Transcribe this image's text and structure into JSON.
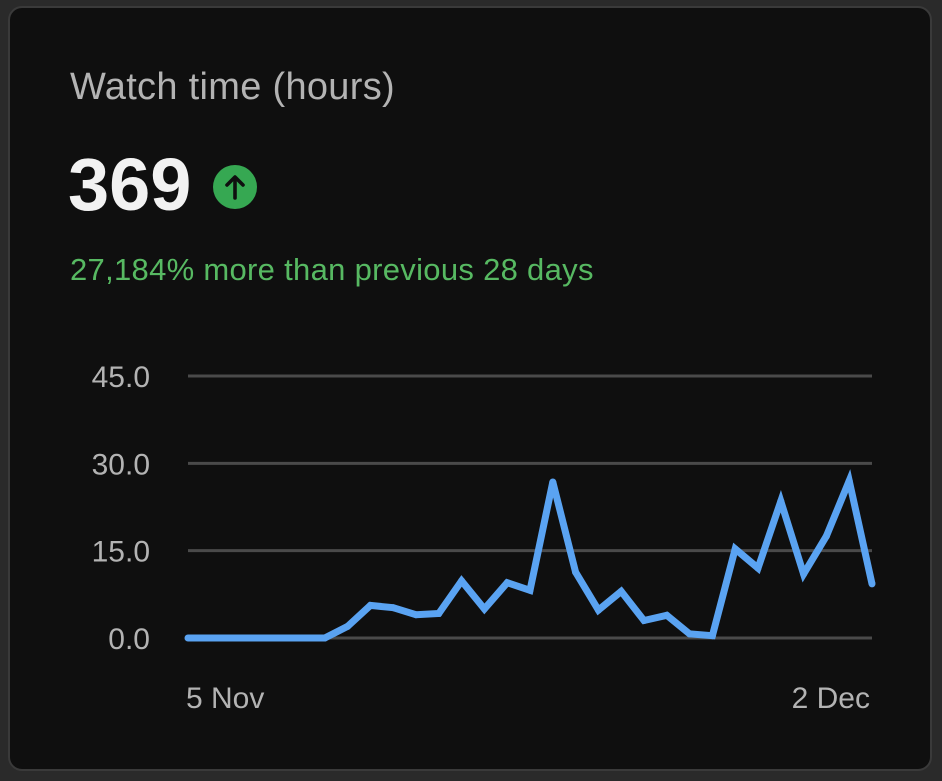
{
  "card": {
    "title": "Watch time (hours)",
    "metric_value": "369",
    "trend_icon": "arrow-up-circle-icon",
    "comparison_text": "27,184% more than previous 28 days"
  },
  "colors": {
    "background": "#0f0f0f",
    "line": "#5aa3f2",
    "positive": "#57b962",
    "gridline": "#4a4a4a",
    "text_muted": "#b3b3b3"
  },
  "chart_data": {
    "type": "line",
    "title": "",
    "xlabel": "",
    "ylabel": "",
    "ylim": [
      0,
      45
    ],
    "yticks": [
      "0.0",
      "15.0",
      "30.0",
      "45.0"
    ],
    "ytick_values": [
      0,
      15,
      30,
      45
    ],
    "xtick_labels": [
      "5 Nov",
      "2 Dec"
    ],
    "grid": true,
    "series": [
      {
        "values": [
          0,
          0,
          0,
          0,
          0,
          0,
          0,
          2,
          5.6,
          5.2,
          4,
          4.2,
          9.8,
          5,
          9.5,
          8.2,
          26.8,
          11.3,
          4.8,
          8,
          3,
          3.9,
          0.7,
          0.4,
          15.3,
          12,
          23.5,
          11,
          17.5,
          27,
          9.3
        ]
      }
    ]
  }
}
